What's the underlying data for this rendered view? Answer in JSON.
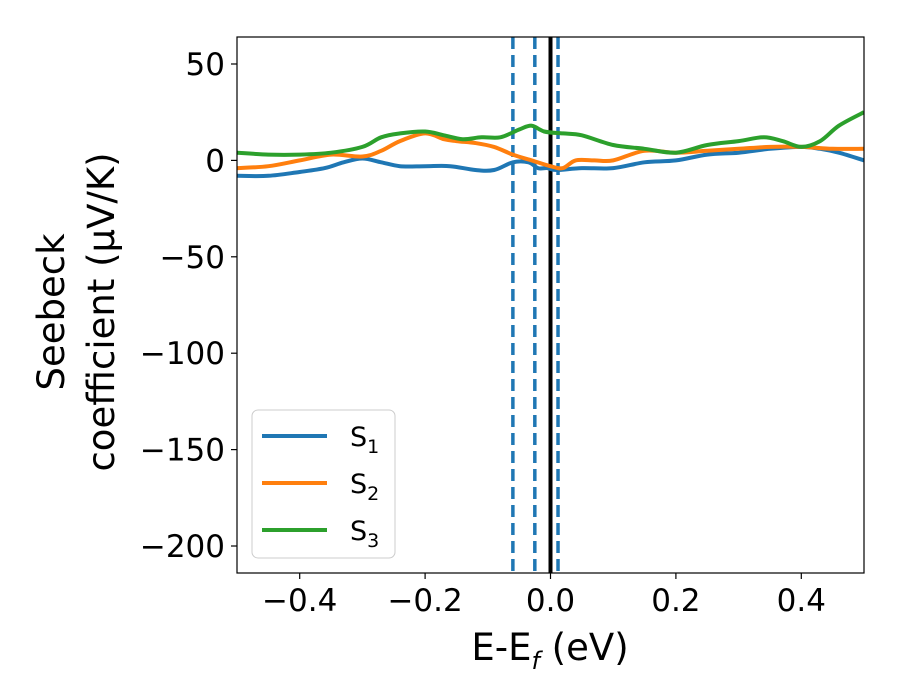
{
  "chart_data": {
    "type": "line",
    "xlabel_main": "E-E",
    "xlabel_sub": "f",
    "xlabel_tail": " (eV)",
    "ylabel_line1": "Seebeck",
    "ylabel_line2": "coefficient  (μV/K)",
    "xlim": [
      -0.5,
      0.5
    ],
    "ylim": [
      -214,
      64
    ],
    "xticks": [
      {
        "value": -0.4,
        "label": "−0.4"
      },
      {
        "value": -0.2,
        "label": "−0.2"
      },
      {
        "value": 0.0,
        "label": "0.0"
      },
      {
        "value": 0.2,
        "label": "0.2"
      },
      {
        "value": 0.4,
        "label": "0.4"
      }
    ],
    "yticks": [
      {
        "value": 50,
        "label": "50"
      },
      {
        "value": 0,
        "label": "0"
      },
      {
        "value": -50,
        "label": "−50"
      },
      {
        "value": -100,
        "label": "−100"
      },
      {
        "value": -150,
        "label": "−150"
      },
      {
        "value": -200,
        "label": "−200"
      }
    ],
    "legend_position": "lower-left",
    "vlines": [
      {
        "x": -0.06,
        "style": "dashed",
        "color": "#1f77b4"
      },
      {
        "x": -0.025,
        "style": "dashed",
        "color": "#1f77b4"
      },
      {
        "x": 0.012,
        "style": "dashed",
        "color": "#1f77b4"
      },
      {
        "x": 0.0,
        "style": "solid",
        "color": "#000000"
      }
    ],
    "series": [
      {
        "name_main": "S",
        "name_sub": "1",
        "color": "#1f77b4",
        "x": [
          -0.5,
          -0.45,
          -0.4,
          -0.36,
          -0.33,
          -0.3,
          -0.27,
          -0.24,
          -0.2,
          -0.16,
          -0.12,
          -0.09,
          -0.06,
          -0.035,
          -0.02,
          -0.005,
          0.01,
          0.05,
          0.1,
          0.15,
          0.2,
          0.25,
          0.3,
          0.35,
          0.4,
          0.43,
          0.46,
          0.5
        ],
        "y": [
          -8,
          -8,
          -6,
          -4,
          -1,
          1,
          -1,
          -3,
          -3,
          -3,
          -5,
          -5,
          -1,
          -1,
          -4,
          -4,
          -5,
          -4,
          -4,
          -1,
          0,
          3,
          4,
          6,
          7,
          6,
          4,
          0
        ]
      },
      {
        "name_main": "S",
        "name_sub": "2",
        "color": "#ff7f0e",
        "x": [
          -0.5,
          -0.45,
          -0.4,
          -0.35,
          -0.3,
          -0.27,
          -0.24,
          -0.2,
          -0.17,
          -0.15,
          -0.12,
          -0.09,
          -0.06,
          -0.03,
          0.0,
          0.02,
          0.04,
          0.07,
          0.1,
          0.15,
          0.2,
          0.25,
          0.3,
          0.35,
          0.4,
          0.45,
          0.5
        ],
        "y": [
          -4,
          -3,
          0,
          3,
          2,
          5,
          10,
          14,
          11,
          10,
          9,
          7,
          3,
          0,
          -3,
          -4,
          0,
          0,
          0,
          5,
          4,
          5,
          6,
          7,
          7,
          6,
          6
        ]
      },
      {
        "name_main": "S",
        "name_sub": "3",
        "color": "#2ca02c",
        "x": [
          -0.5,
          -0.45,
          -0.4,
          -0.35,
          -0.3,
          -0.27,
          -0.24,
          -0.2,
          -0.17,
          -0.14,
          -0.11,
          -0.08,
          -0.05,
          -0.03,
          -0.01,
          0.02,
          0.05,
          0.1,
          0.15,
          0.2,
          0.25,
          0.3,
          0.34,
          0.37,
          0.4,
          0.43,
          0.46,
          0.5
        ],
        "y": [
          4,
          3,
          3,
          4,
          7,
          12,
          14,
          15,
          13,
          11,
          12,
          12,
          16,
          18,
          15,
          14,
          13,
          8,
          6,
          4,
          8,
          10,
          12,
          10,
          7,
          10,
          18,
          25
        ]
      }
    ]
  }
}
